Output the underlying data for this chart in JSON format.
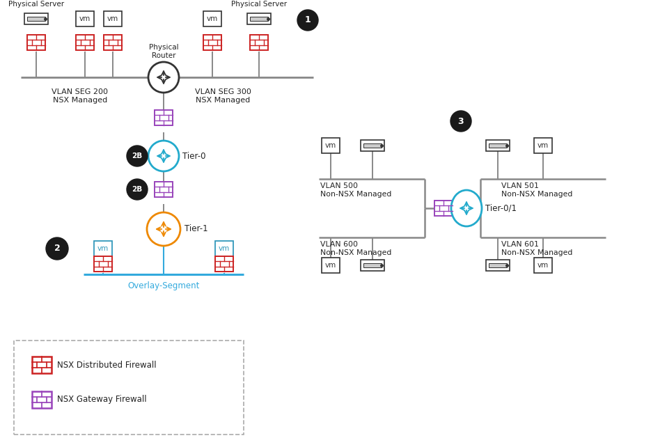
{
  "bg_color": "#ffffff",
  "red_fw_color": "#cc2222",
  "purple_fw_color": "#9944bb",
  "cyan_router_color": "#22aacc",
  "orange_router_color": "#ee8800",
  "black_badge_color": "#1a1a1a",
  "overlay_segment_color": "#33aadd",
  "gray_line_color": "#888888",
  "dark_text": "#222222",
  "scenario1_badge": "1",
  "scenario2_badge": "2",
  "scenario2b_badge": "2B",
  "scenario3_badge": "3",
  "vlan_seg_200": "VLAN SEG 200\nNSX Managed",
  "vlan_seg_300": "VLAN SEG 300\nNSX Managed",
  "vlan_500": "VLAN 500\nNon-NSX Managed",
  "vlan_600": "VLAN 600\nNon-NSX Managed",
  "vlan_501": "VLAN 501\nNon-NSX Managed",
  "vlan_601": "VLAN 601\nNon-NSX Managed",
  "phys_server": "Physical Server",
  "phys_router": "Physical\nRouter",
  "tier0_label": "Tier-0",
  "tier1_label": "Tier-1",
  "tier01_label": "Tier-0/1",
  "overlay_label": "Overlay-Segment",
  "legend_dfw": "NSX Distributed Firewall",
  "legend_gfw": "NSX Gateway Firewall",
  "vm_label": "vm"
}
